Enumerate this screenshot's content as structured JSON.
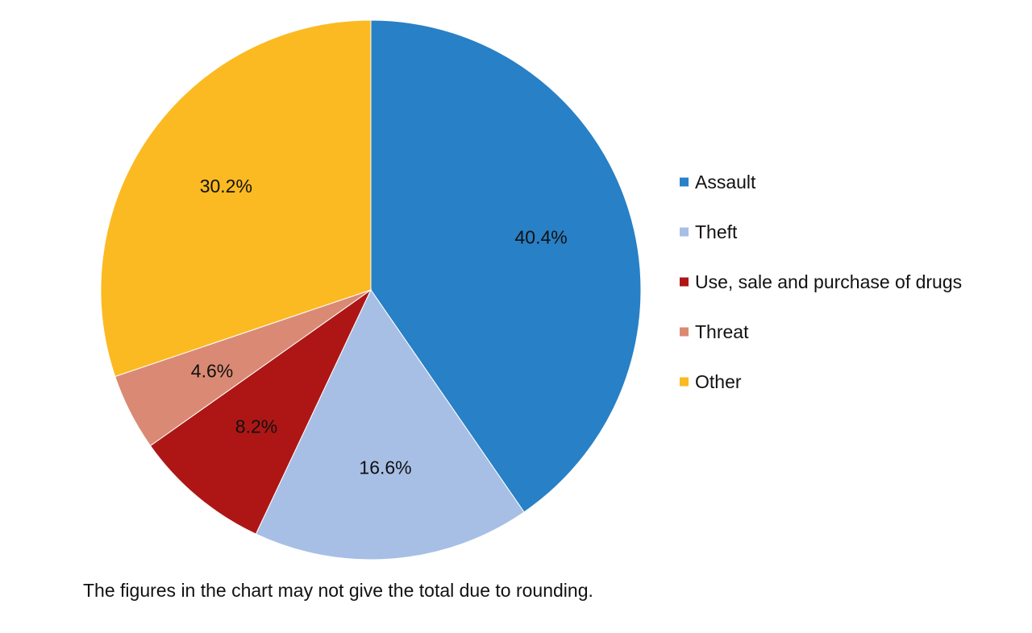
{
  "chart_data": {
    "type": "pie",
    "title": "",
    "categories": [
      "Assault",
      "Theft",
      "Use, sale and purchase of drugs",
      "Threat",
      "Other"
    ],
    "values": [
      40.4,
      16.6,
      8.2,
      4.6,
      30.2
    ],
    "labels": [
      "40.4%",
      "16.6%",
      "8.2%",
      "4.6%",
      "30.2%"
    ],
    "colors": [
      "#2880C6",
      "#A7BFE5",
      "#AE1616",
      "#DA8A74",
      "#FBBA22"
    ],
    "start_angle_deg": 0,
    "direction": "clockwise",
    "legend": {
      "position": "right",
      "entries": [
        "Assault",
        "Theft",
        "Use, sale and purchase of drugs",
        "Threat",
        "Other"
      ]
    }
  },
  "footnote": "The figures in the chart may not give the total due to rounding."
}
